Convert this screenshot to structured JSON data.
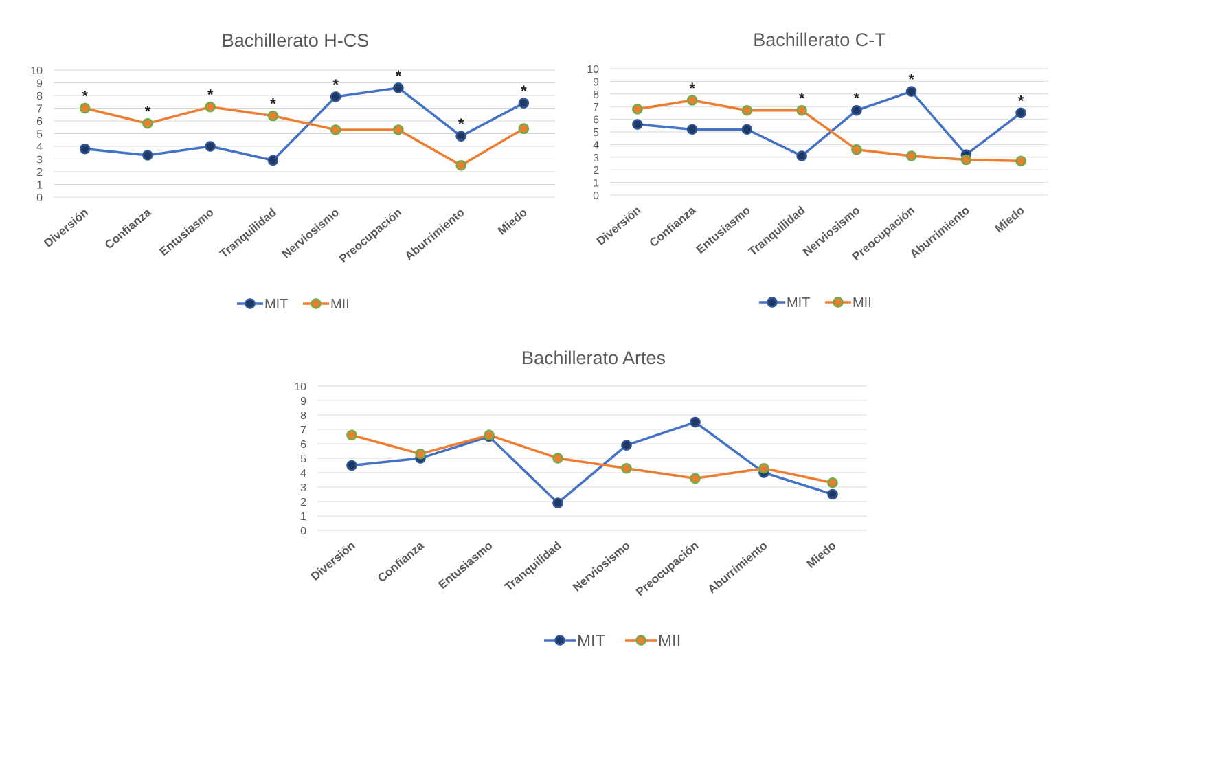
{
  "colors": {
    "mit_line": "#4472C4",
    "mit_marker_fill": "#1F3864",
    "mit_marker_stroke": "#2F5597",
    "mii_line": "#ED7D31",
    "mii_marker_fill": "#ED7D31",
    "mii_marker_stroke": "#70AD47",
    "grid": "#D9D9D9",
    "text": "#595959"
  },
  "chart_data": [
    {
      "type": "line",
      "title": "Bachillerato H-CS",
      "categories": [
        "Diversión",
        "Confianza",
        "Entusiasmo",
        "Tranquilidad",
        "Nerviosismo",
        "Preocupación",
        "Aburrimiento",
        "Miedo"
      ],
      "ylim": [
        0,
        10
      ],
      "yticks": [
        "0",
        "1",
        "2",
        "3",
        "4",
        "5",
        "6",
        "7",
        "8",
        "9",
        "10"
      ],
      "grid": true,
      "legend": "bottom",
      "series": [
        {
          "name": "MIT",
          "values": [
            3.8,
            3.3,
            4.0,
            2.9,
            7.9,
            8.6,
            4.8,
            7.4
          ]
        },
        {
          "name": "MII",
          "values": [
            7.0,
            5.8,
            7.1,
            6.4,
            5.3,
            5.3,
            2.5,
            5.4
          ]
        }
      ],
      "annotations": [
        {
          "text": "*",
          "category": "Diversión",
          "y": 7.0
        },
        {
          "text": "*",
          "category": "Confianza",
          "y": 5.8
        },
        {
          "text": "*",
          "category": "Entusiasmo",
          "y": 7.1
        },
        {
          "text": "*",
          "category": "Tranquilidad",
          "y": 6.4
        },
        {
          "text": "*",
          "category": "Nerviosismo",
          "y": 7.9
        },
        {
          "text": "*",
          "category": "Preocupación",
          "y": 8.6
        },
        {
          "text": "*",
          "category": "Aburrimiento",
          "y": 4.8
        },
        {
          "text": "*",
          "category": "Miedo",
          "y": 7.4
        }
      ]
    },
    {
      "type": "line",
      "title": "Bachillerato C-T",
      "categories": [
        "Diversión",
        "Confianza",
        "Entusiasmo",
        "Tranquilidad",
        "Nerviosismo",
        "Preocupación",
        "Aburrimiento",
        "Miedo"
      ],
      "ylim": [
        0,
        10
      ],
      "yticks": [
        "0",
        "1",
        "2",
        "3",
        "4",
        "5",
        "6",
        "7",
        "8",
        "9",
        "10"
      ],
      "grid": true,
      "legend": "bottom",
      "series": [
        {
          "name": "MIT",
          "values": [
            5.6,
            5.2,
            5.2,
            3.1,
            6.7,
            8.2,
            3.2,
            6.5
          ]
        },
        {
          "name": "MII",
          "values": [
            6.8,
            7.5,
            6.7,
            6.7,
            3.6,
            3.1,
            2.8,
            2.7
          ]
        }
      ],
      "annotations": [
        {
          "text": "*",
          "category": "Confianza",
          "y": 7.5
        },
        {
          "text": "*",
          "category": "Tranquilidad",
          "y": 6.7
        },
        {
          "text": "*",
          "category": "Nerviosismo",
          "y": 6.7
        },
        {
          "text": "*",
          "category": "Preocupación",
          "y": 8.2
        },
        {
          "text": "*",
          "category": "Miedo",
          "y": 6.5
        }
      ]
    },
    {
      "type": "line",
      "title": "Bachillerato Artes",
      "categories": [
        "Diversión",
        "Confianza",
        "Entusiasmo",
        "Tranquilidad",
        "Nerviosismo",
        "Preocupación",
        "Aburrimiento",
        "Miedo"
      ],
      "ylim": [
        0,
        10
      ],
      "yticks": [
        "0",
        "1",
        "2",
        "3",
        "4",
        "5",
        "6",
        "7",
        "8",
        "9",
        "10"
      ],
      "grid": true,
      "legend": "bottom",
      "series": [
        {
          "name": "MIT",
          "values": [
            4.5,
            5.0,
            6.5,
            1.9,
            5.9,
            7.5,
            4.0,
            2.5
          ]
        },
        {
          "name": "MII",
          "values": [
            6.6,
            5.3,
            6.6,
            5.0,
            4.3,
            3.6,
            4.3,
            3.3
          ]
        }
      ],
      "annotations": []
    }
  ]
}
